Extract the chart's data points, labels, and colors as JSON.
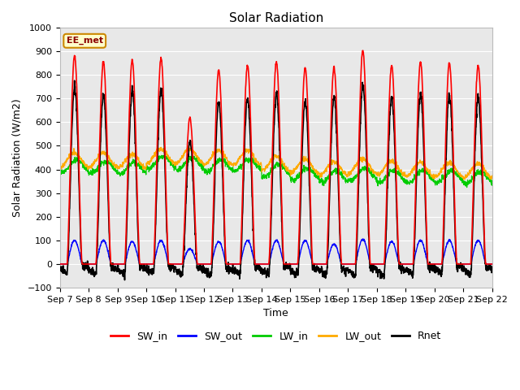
{
  "title": "Solar Radiation",
  "xlabel": "Time",
  "ylabel": "Solar Radiation (W/m2)",
  "ylim": [
    -100,
    1000
  ],
  "yticks": [
    -100,
    0,
    100,
    200,
    300,
    400,
    500,
    600,
    700,
    800,
    900,
    1000
  ],
  "n_days": 15,
  "pts_per_hour": 6,
  "colors": {
    "SW_in": "#ff0000",
    "SW_out": "#0000ff",
    "LW_in": "#00cc00",
    "LW_out": "#ffaa00",
    "Rnet": "#000000"
  },
  "background_color": "#e8e8e8",
  "annotation_text": "EE_met",
  "annotation_bg": "#ffffcc",
  "annotation_border": "#cc8800",
  "SW_peaks": [
    880,
    855,
    860,
    870,
    620,
    820,
    840,
    855,
    830,
    830,
    905,
    840,
    855,
    850,
    840
  ],
  "SW_out_peaks": [
    100,
    100,
    95,
    100,
    65,
    95,
    100,
    100,
    100,
    85,
    105,
    95,
    100,
    100,
    100
  ],
  "LW_in_base": [
    415,
    410,
    405,
    430,
    425,
    415,
    420,
    395,
    380,
    370,
    380,
    370,
    370,
    370,
    365
  ],
  "LW_out_base": [
    440,
    440,
    435,
    455,
    455,
    450,
    450,
    425,
    415,
    405,
    415,
    405,
    400,
    400,
    395
  ],
  "Rnet_night": -55,
  "figsize": [
    6.4,
    4.8
  ],
  "dpi": 100
}
